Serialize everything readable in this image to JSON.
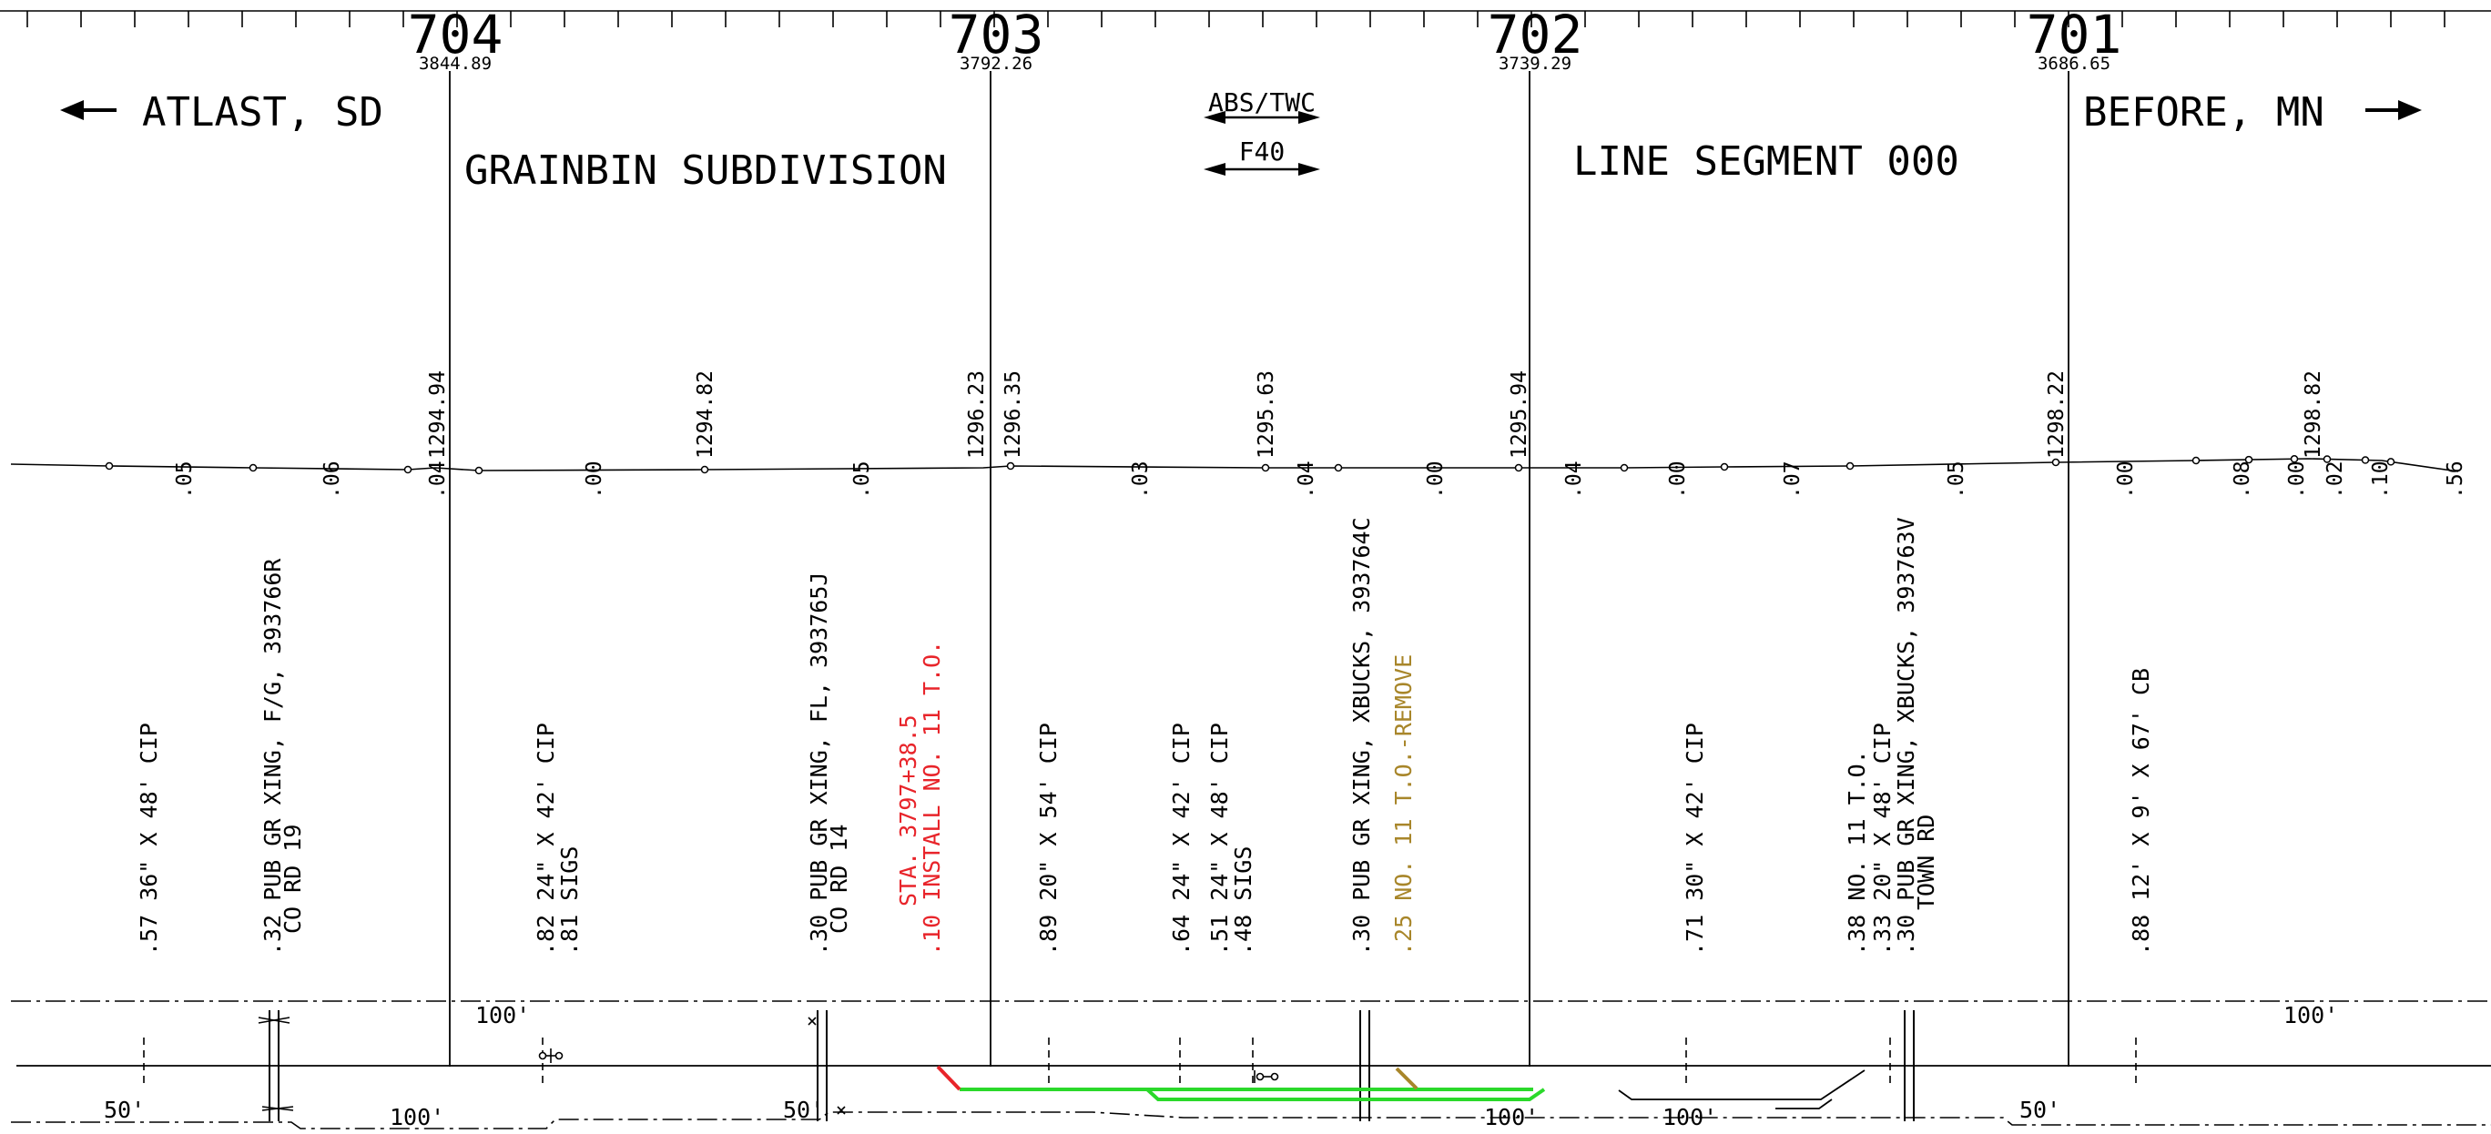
{
  "header": {
    "mileposts": [
      {
        "number": "704",
        "station": "3844.89"
      },
      {
        "number": "703",
        "station": "3792.26"
      },
      {
        "number": "702",
        "station": "3739.29"
      },
      {
        "number": "701",
        "station": "3686.65"
      }
    ],
    "left_direction": "ATLAST, SD",
    "right_direction": "BEFORE, MN",
    "subdivision": "GRAINBIN SUBDIVISION",
    "line_segment": "LINE SEGMENT 000",
    "abs_twc": "ABS/TWC",
    "f40": "F40"
  },
  "elevations": [
    "1294.94",
    "1294.82",
    "1296.23",
    "1296.35",
    "1295.63",
    "1295.94",
    "1298.22",
    "1298.82"
  ],
  "grades": [
    ".05",
    ".06",
    ".04",
    ".00",
    ".05",
    ".03",
    ".04",
    ".00",
    ".04",
    ".00",
    ".07",
    ".05",
    ".00",
    ".08",
    ".00",
    ".02",
    ".10",
    ".56"
  ],
  "features": [
    {
      "lines": [
        ".57 36\" X 48' CIP"
      ],
      "color": "#000000"
    },
    {
      "lines": [
        ".32 PUB GR XING, F/G, 393766R",
        "CO RD 19"
      ],
      "color": "#000000"
    },
    {
      "lines": [
        ".82 24\" X 42' CIP",
        ".81 SIGS"
      ],
      "color": "#000000"
    },
    {
      "lines": [
        ".30 PUB GR XING, FL, 393765J",
        "CO RD 14"
      ],
      "color": "#000000"
    },
    {
      "lines": [
        "STA. 3797+38.5",
        ".10 INSTALL NO. 11 T.O."
      ],
      "color": "#e8242a"
    },
    {
      "lines": [
        ".89 20\" X 54' CIP"
      ],
      "color": "#000000"
    },
    {
      "lines": [
        ".64 24\" X 42' CIP"
      ],
      "color": "#000000"
    },
    {
      "lines": [
        ".51 24\" X 48' CIP",
        ".48 SIGS"
      ],
      "color": "#000000"
    },
    {
      "lines": [
        ".30 PUB GR XING, XBUCKS, 393764C"
      ],
      "color": "#000000"
    },
    {
      "lines": [
        ".25 NO. 11 T.O.-REMOVE"
      ],
      "color": "#a8862a"
    },
    {
      "lines": [
        ".71 30\" X 42' CIP"
      ],
      "color": "#000000"
    },
    {
      "lines": [
        ".38 NO. 11 T.O.",
        ".33 20\" X 48' CIP",
        ".30 PUB GR XING, XBUCKS, 393763V",
        "TOWN RD"
      ],
      "color": "#000000"
    },
    {
      "lines": [
        ".88 12' X 9' X 67' CB"
      ],
      "color": "#000000"
    }
  ],
  "row_labels": [
    "100'",
    "100'",
    "50'",
    "100'",
    "50'",
    "100'",
    "100'",
    "50'"
  ],
  "colors": {
    "proposed_track": "#2bd92b",
    "install": "#e8242a",
    "remove": "#a8862a",
    "lines": "#000000"
  }
}
